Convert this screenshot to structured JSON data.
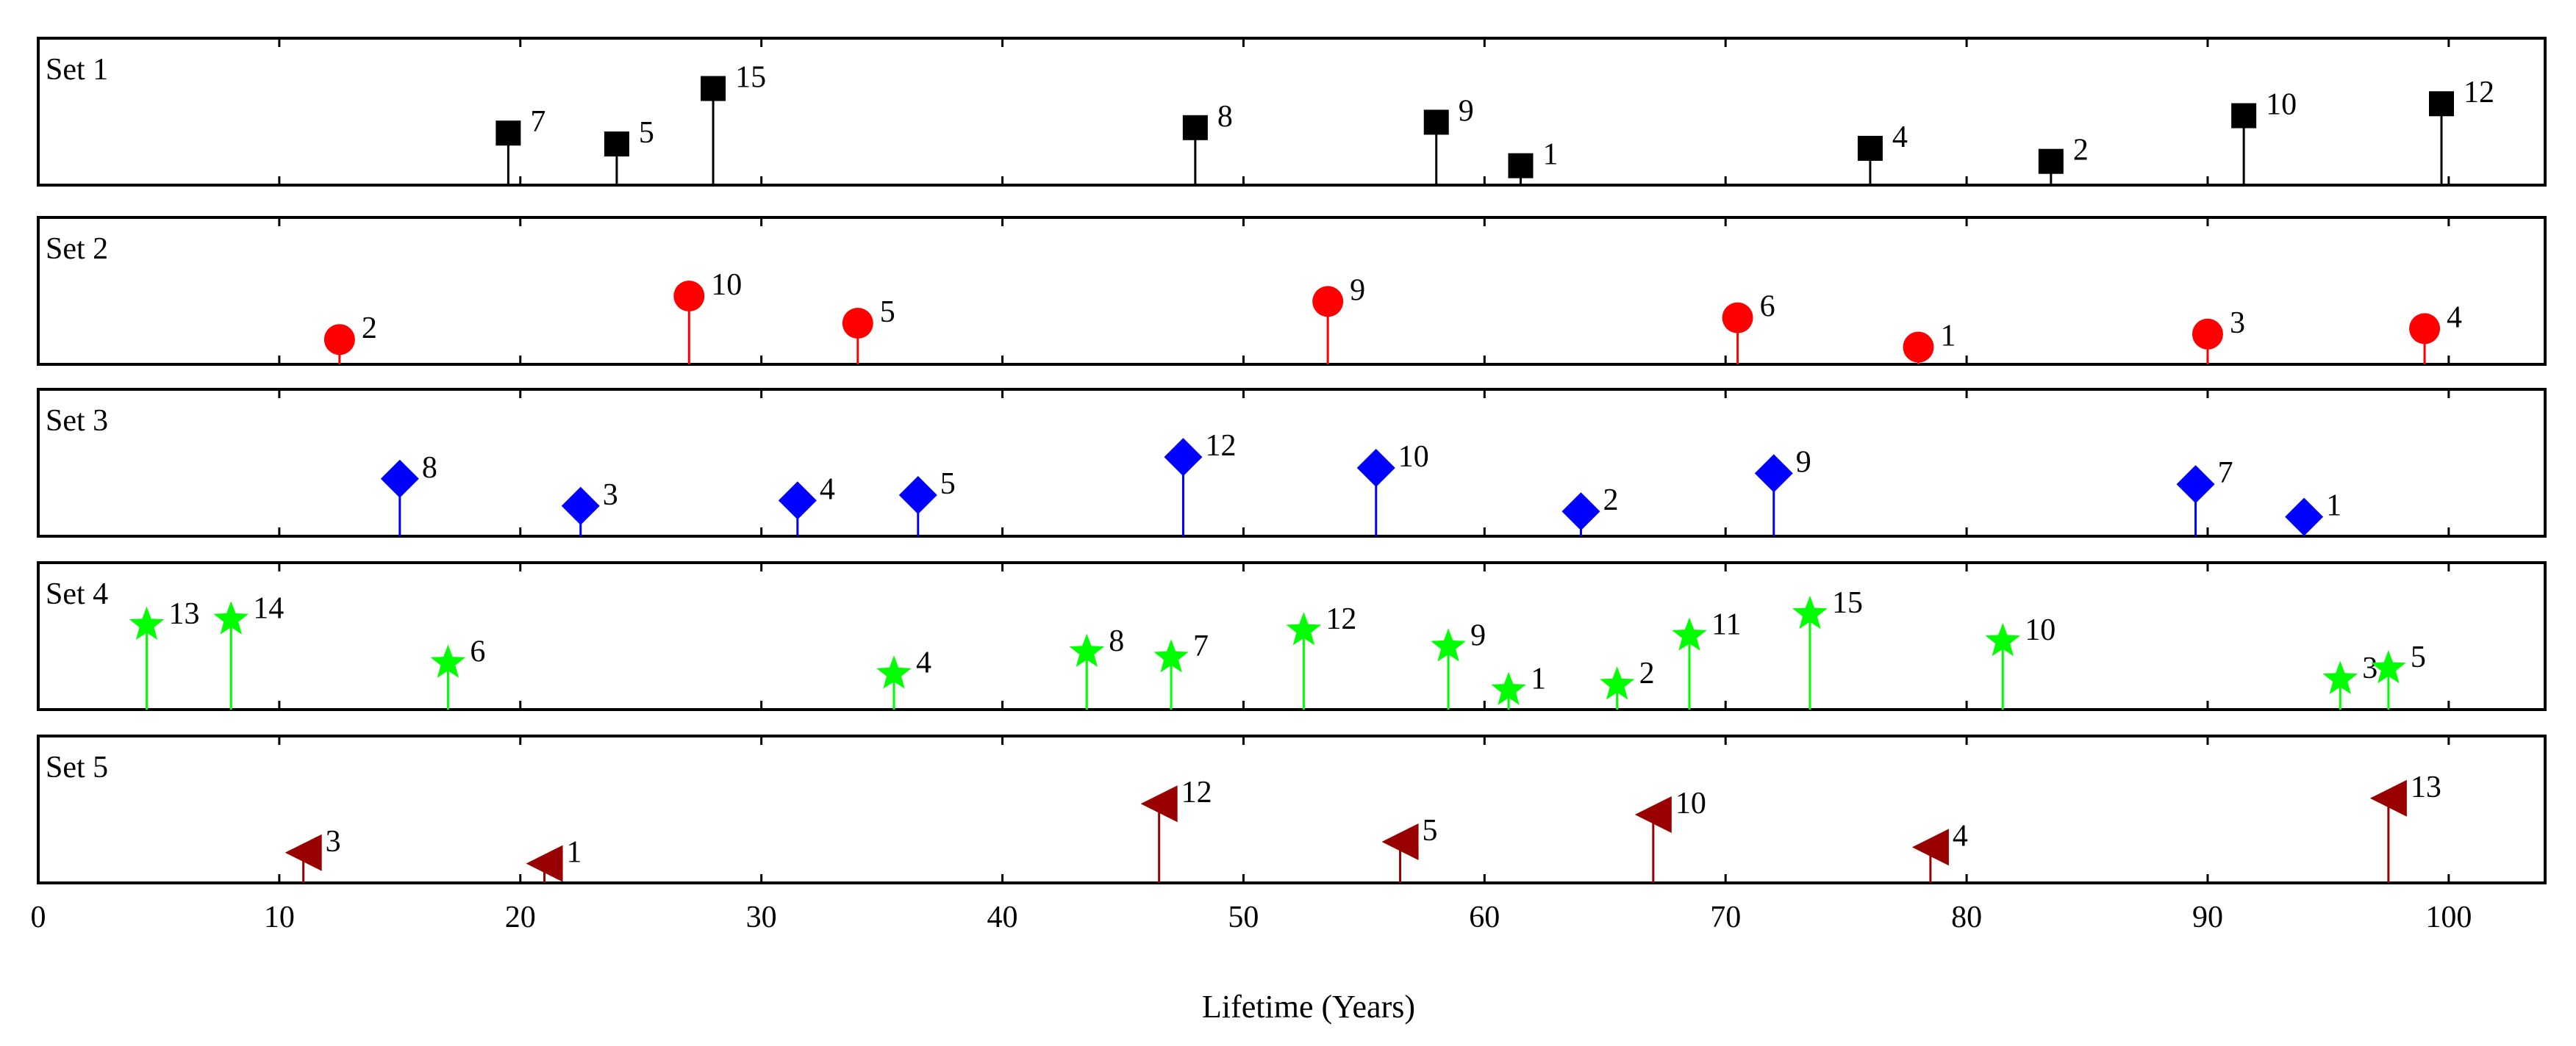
{
  "chart_data": {
    "type": "scatter",
    "xlabel": "Lifetime (Years)",
    "xlim": [
      0,
      104
    ],
    "xticks": [
      0,
      10,
      20,
      30,
      40,
      50,
      60,
      70,
      80,
      90,
      100
    ],
    "xtick_labels": [
      "0",
      "10",
      "20",
      "30",
      "40",
      "50",
      "60",
      "70",
      "80",
      "90",
      "100"
    ],
    "panel_ylim": [
      0,
      1
    ],
    "sets": [
      {
        "name": "Set 1",
        "marker": "square",
        "color": "#000000",
        "points": [
          {
            "x": 19.5,
            "y": 0.35,
            "label": "7"
          },
          {
            "x": 24.0,
            "y": 0.25,
            "label": "5"
          },
          {
            "x": 28.0,
            "y": 0.76,
            "label": "15"
          },
          {
            "x": 48.0,
            "y": 0.4,
            "label": "8"
          },
          {
            "x": 58.0,
            "y": 0.45,
            "label": "9"
          },
          {
            "x": 61.5,
            "y": 0.05,
            "label": "1"
          },
          {
            "x": 76.0,
            "y": 0.21,
            "label": "4"
          },
          {
            "x": 83.5,
            "y": 0.09,
            "label": "2"
          },
          {
            "x": 91.5,
            "y": 0.51,
            "label": "10"
          },
          {
            "x": 99.7,
            "y": 0.62,
            "label": "12"
          }
        ]
      },
      {
        "name": "Set 2",
        "marker": "circle",
        "color": "#ff0000",
        "points": [
          {
            "x": 12.5,
            "y": 0.1,
            "label": "2"
          },
          {
            "x": 27.0,
            "y": 0.5,
            "label": "10"
          },
          {
            "x": 34.0,
            "y": 0.25,
            "label": "5"
          },
          {
            "x": 53.5,
            "y": 0.45,
            "label": "9"
          },
          {
            "x": 70.5,
            "y": 0.3,
            "label": "6"
          },
          {
            "x": 78.0,
            "y": 0.03,
            "label": "1"
          },
          {
            "x": 90.0,
            "y": 0.15,
            "label": "3"
          },
          {
            "x": 99.0,
            "y": 0.2,
            "label": "4"
          }
        ]
      },
      {
        "name": "Set 3",
        "marker": "diamond",
        "color": "#0000ff",
        "points": [
          {
            "x": 15.0,
            "y": 0.4,
            "label": "8"
          },
          {
            "x": 22.5,
            "y": 0.15,
            "label": "3"
          },
          {
            "x": 31.5,
            "y": 0.2,
            "label": "4"
          },
          {
            "x": 36.5,
            "y": 0.25,
            "label": "5"
          },
          {
            "x": 47.5,
            "y": 0.6,
            "label": "12"
          },
          {
            "x": 55.5,
            "y": 0.5,
            "label": "10"
          },
          {
            "x": 64.0,
            "y": 0.1,
            "label": "2"
          },
          {
            "x": 72.0,
            "y": 0.45,
            "label": "9"
          },
          {
            "x": 89.5,
            "y": 0.35,
            "label": "7"
          },
          {
            "x": 94.0,
            "y": 0.05,
            "label": "1"
          }
        ]
      },
      {
        "name": "Set 4",
        "marker": "star",
        "color": "#00ff00",
        "points": [
          {
            "x": 4.5,
            "y": 0.65,
            "label": "13"
          },
          {
            "x": 8.0,
            "y": 0.7,
            "label": "14"
          },
          {
            "x": 17.0,
            "y": 0.3,
            "label": "6"
          },
          {
            "x": 35.5,
            "y": 0.2,
            "label": "4"
          },
          {
            "x": 43.5,
            "y": 0.4,
            "label": "8"
          },
          {
            "x": 47.0,
            "y": 0.35,
            "label": "7"
          },
          {
            "x": 52.5,
            "y": 0.6,
            "label": "12"
          },
          {
            "x": 58.5,
            "y": 0.45,
            "label": "9"
          },
          {
            "x": 61.0,
            "y": 0.05,
            "label": "1"
          },
          {
            "x": 65.5,
            "y": 0.1,
            "label": "2"
          },
          {
            "x": 68.5,
            "y": 0.55,
            "label": "11"
          },
          {
            "x": 73.5,
            "y": 0.75,
            "label": "15"
          },
          {
            "x": 81.5,
            "y": 0.5,
            "label": "10"
          },
          {
            "x": 95.5,
            "y": 0.15,
            "label": "3"
          },
          {
            "x": 97.5,
            "y": 0.25,
            "label": "5"
          }
        ]
      },
      {
        "name": "Set 5",
        "marker": "triangle-left",
        "color": "#990000",
        "points": [
          {
            "x": 11.0,
            "y": 0.15,
            "label": "3"
          },
          {
            "x": 21.0,
            "y": 0.05,
            "label": "1"
          },
          {
            "x": 46.5,
            "y": 0.6,
            "label": "12"
          },
          {
            "x": 56.5,
            "y": 0.25,
            "label": "5"
          },
          {
            "x": 67.0,
            "y": 0.5,
            "label": "10"
          },
          {
            "x": 78.5,
            "y": 0.2,
            "label": "4"
          },
          {
            "x": 97.5,
            "y": 0.65,
            "label": "13"
          }
        ]
      }
    ]
  }
}
